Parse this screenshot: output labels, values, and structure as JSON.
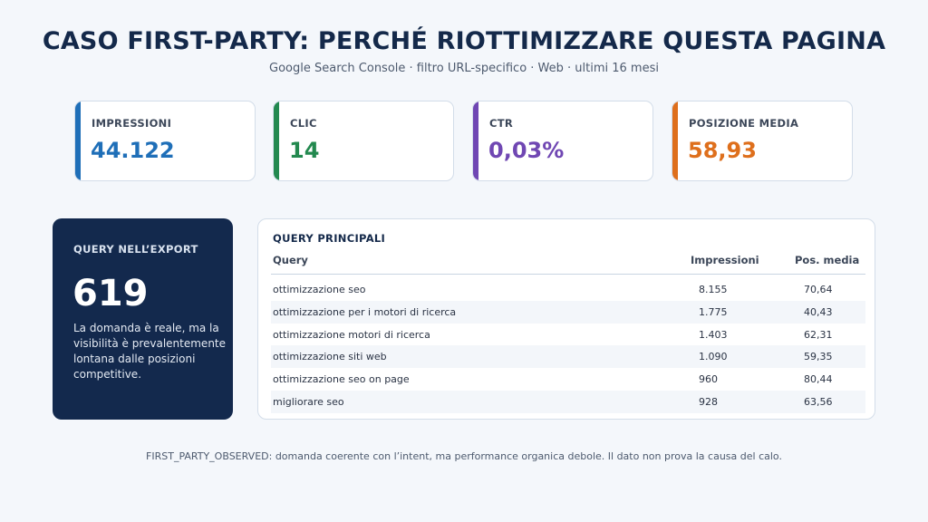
{
  "header": {
    "title": "CASO FIRST-PARTY: PERCHÉ RIOTTIMIZZARE QUESTA PAGINA",
    "subtitle": "Google Search Console · filtro URL-specifico · Web · ultimi 16 mesi"
  },
  "kpis": [
    {
      "label": "IMPRESSIONI",
      "value": "44.122",
      "color": "#1f6fb8"
    },
    {
      "label": "CLIC",
      "value": "14",
      "color": "#23894f"
    },
    {
      "label": "CTR",
      "value": "0,03%",
      "color": "#7047b3"
    },
    {
      "label": "POSIZIONE MEDIA",
      "value": "58,93",
      "color": "#de6f1c"
    }
  ],
  "export_card": {
    "label": "QUERY NELL’EXPORT",
    "value": "619",
    "description": "La domanda è reale, ma la visibilità è prevalentemente lontana dalle posizioni competitive."
  },
  "queries": {
    "label": "QUERY PRINCIPALI",
    "columns": [
      "Query",
      "Impressioni",
      "Pos. media"
    ],
    "rows": [
      [
        "ottimizzazione seo",
        "8.155",
        "70,64"
      ],
      [
        "ottimizzazione per i motori di ricerca",
        "1.775",
        "40,43"
      ],
      [
        "ottimizzazione motori di ricerca",
        "1.403",
        "62,31"
      ],
      [
        "ottimizzazione siti web",
        "1.090",
        "59,35"
      ],
      [
        "ottimizzazione seo on page",
        "960",
        "80,44"
      ],
      [
        "migliorare seo",
        "928",
        "63,56"
      ]
    ]
  },
  "footnote": "FIRST_PARTY_OBSERVED: domanda coerente con l’intent, ma performance organica debole. Il dato non prova la causa del calo."
}
